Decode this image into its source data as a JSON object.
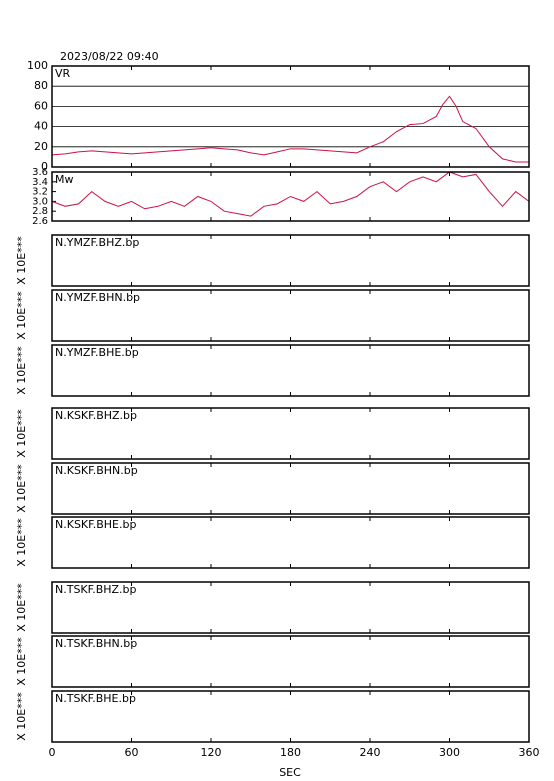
{
  "date": "2023/08/22 09:40",
  "x_axis": {
    "label": "SEC",
    "xlim": [
      0,
      360
    ],
    "xticks": [
      0,
      60,
      120,
      180,
      240,
      300,
      360
    ]
  },
  "chart_data": [
    {
      "type": "line",
      "label": "VR",
      "color": "#cc1144",
      "grid": true,
      "ylim": [
        0,
        100
      ],
      "yticks": [
        0,
        20,
        40,
        60,
        80,
        100
      ],
      "x": [
        0,
        10,
        20,
        30,
        40,
        50,
        60,
        70,
        80,
        90,
        100,
        110,
        120,
        130,
        140,
        150,
        160,
        170,
        180,
        190,
        200,
        210,
        220,
        230,
        240,
        250,
        260,
        270,
        280,
        290,
        295,
        300,
        305,
        310,
        320,
        330,
        340,
        350,
        360
      ],
      "values": [
        12,
        13,
        15,
        16,
        15,
        14,
        13,
        14,
        15,
        16,
        17,
        18,
        19,
        18,
        17,
        14,
        12,
        15,
        18,
        18,
        17,
        16,
        15,
        14,
        20,
        25,
        35,
        42,
        43,
        50,
        62,
        70,
        60,
        45,
        38,
        20,
        8,
        5,
        5
      ]
    },
    {
      "type": "line",
      "label": "Mw",
      "color": "#cc1144",
      "grid": false,
      "ylim": [
        2.6,
        3.6
      ],
      "yticks": [
        2.6,
        2.8,
        {
          "value": 3,
          "label": "3.0"
        },
        3.2,
        3.4,
        3.6
      ],
      "x": [
        0,
        10,
        20,
        30,
        40,
        50,
        60,
        70,
        80,
        90,
        100,
        110,
        120,
        130,
        140,
        150,
        160,
        170,
        180,
        190,
        200,
        210,
        220,
        230,
        240,
        250,
        260,
        270,
        280,
        290,
        300,
        310,
        320,
        330,
        340,
        350,
        360
      ],
      "values": [
        3.0,
        2.9,
        2.95,
        3.2,
        3.0,
        2.9,
        3.0,
        2.85,
        2.9,
        3.0,
        2.9,
        3.1,
        3.0,
        2.8,
        2.75,
        2.7,
        2.9,
        2.95,
        3.1,
        3.0,
        3.2,
        2.95,
        3.0,
        3.1,
        3.3,
        3.4,
        3.2,
        3.4,
        3.5,
        3.4,
        3.6,
        3.5,
        3.55,
        3.2,
        2.9,
        3.2,
        3.0
      ]
    }
  ],
  "traces": [
    {
      "label": "N.YMZF.BHZ.bp",
      "scale_label": "X 10E***"
    },
    {
      "label": "N.YMZF.BHN.bp",
      "scale_label": "X 10E***"
    },
    {
      "label": "N.YMZF.BHE.bp",
      "scale_label": "X 10E***"
    },
    {
      "label": "N.KSKF.BHZ.bp",
      "scale_label": "X 10E***"
    },
    {
      "label": "N.KSKF.BHN.bp",
      "scale_label": "X 10E***"
    },
    {
      "label": "N.KSKF.BHE.bp",
      "scale_label": "X 10E***"
    },
    {
      "label": "N.TSKF.BHZ.bp",
      "scale_label": "X 10E***"
    },
    {
      "label": "N.TSKF.BHN.bp",
      "scale_label": "X 10E***"
    },
    {
      "label": "N.TSKF.BHE.bp",
      "scale_label": "X 10E***"
    }
  ]
}
